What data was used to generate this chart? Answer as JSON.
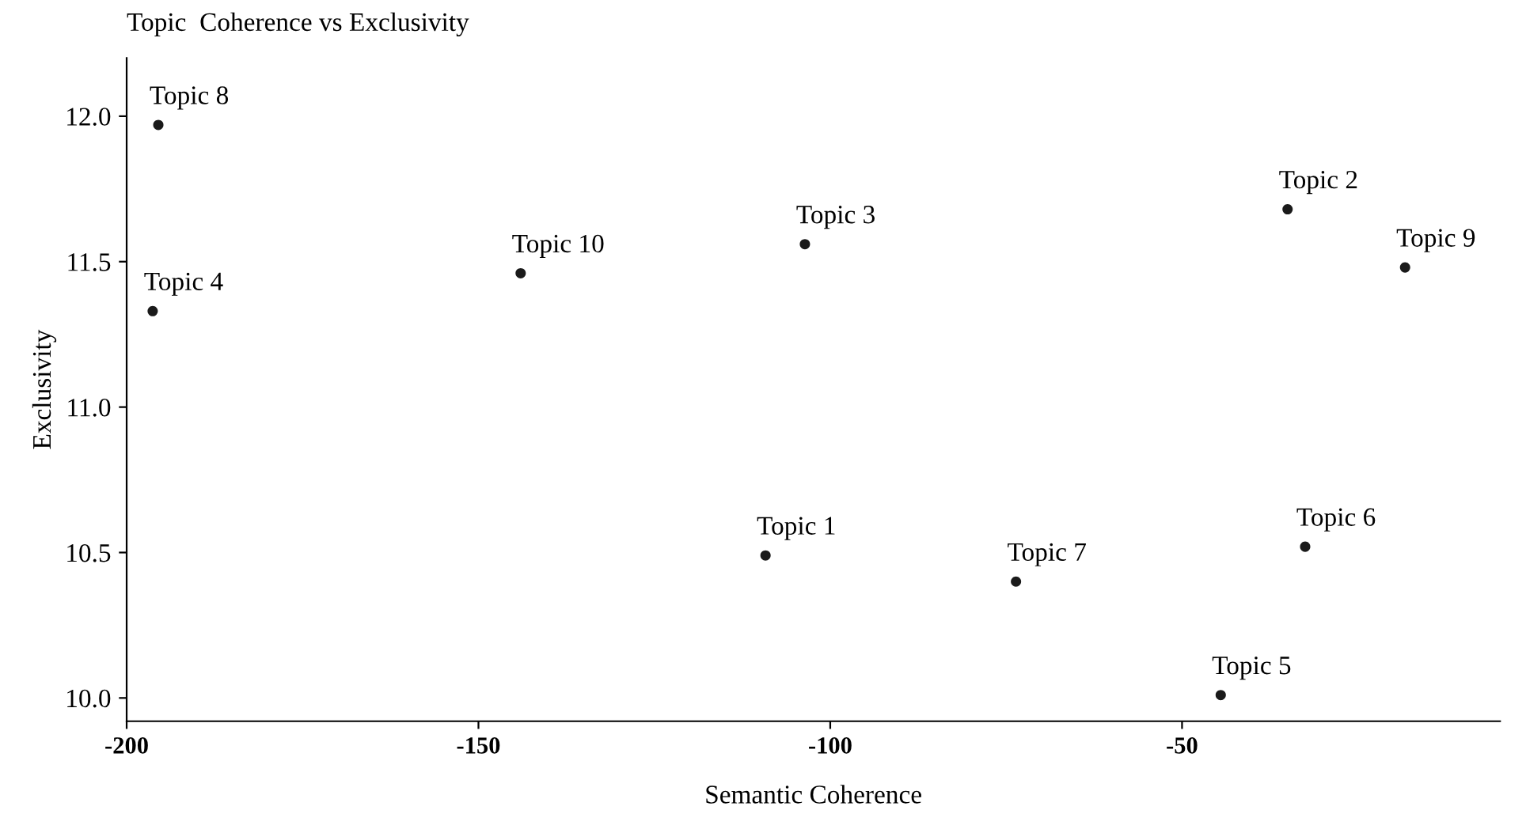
{
  "chart_data": {
    "type": "scatter",
    "title": "Topic  Coherence vs Exclusivity",
    "xlabel": "Semantic Coherence",
    "ylabel": "Exclusivity",
    "series": [
      {
        "color": "#1a1a1a",
        "x": [
          -109.2,
          -35.0,
          -103.6,
          -196.3,
          -44.5,
          -32.5,
          -73.6,
          -195.5,
          -18.3,
          -144.0
        ],
        "values": [
          10.49,
          11.68,
          11.56,
          11.33,
          10.01,
          10.52,
          10.4,
          11.97,
          11.48,
          11.46
        ]
      }
    ],
    "annotations": [
      {
        "text": "Topic 1",
        "x": -109.2,
        "y": 10.49
      },
      {
        "text": "Topic 2",
        "x": -35.0,
        "y": 11.68
      },
      {
        "text": "Topic 3",
        "x": -103.6,
        "y": 11.56
      },
      {
        "text": "Topic 4",
        "x": -196.3,
        "y": 11.33
      },
      {
        "text": "Topic 5",
        "x": -44.5,
        "y": 10.01
      },
      {
        "text": "Topic 6",
        "x": -32.5,
        "y": 10.52
      },
      {
        "text": "Topic 7",
        "x": -73.6,
        "y": 10.4
      },
      {
        "text": "Topic 8",
        "x": -195.5,
        "y": 11.97
      },
      {
        "text": "Topic 9",
        "x": -18.3,
        "y": 11.48
      },
      {
        "text": "Topic 10",
        "x": -144.0,
        "y": 11.46
      }
    ],
    "xlim": [
      -200,
      -4.8
    ],
    "ylim": [
      9.92,
      12.2
    ],
    "xticks": [
      -200,
      -150,
      -100,
      -50
    ],
    "yticks": [
      {
        "value": 10,
        "label": "10.0"
      },
      {
        "value": 10.5,
        "label": "10.5"
      },
      {
        "value": 11,
        "label": "11.0"
      },
      {
        "value": 11.5,
        "label": "11.5"
      },
      {
        "value": 12,
        "label": "12.0"
      }
    ],
    "grid": false,
    "legend": false,
    "marker": "circle"
  }
}
